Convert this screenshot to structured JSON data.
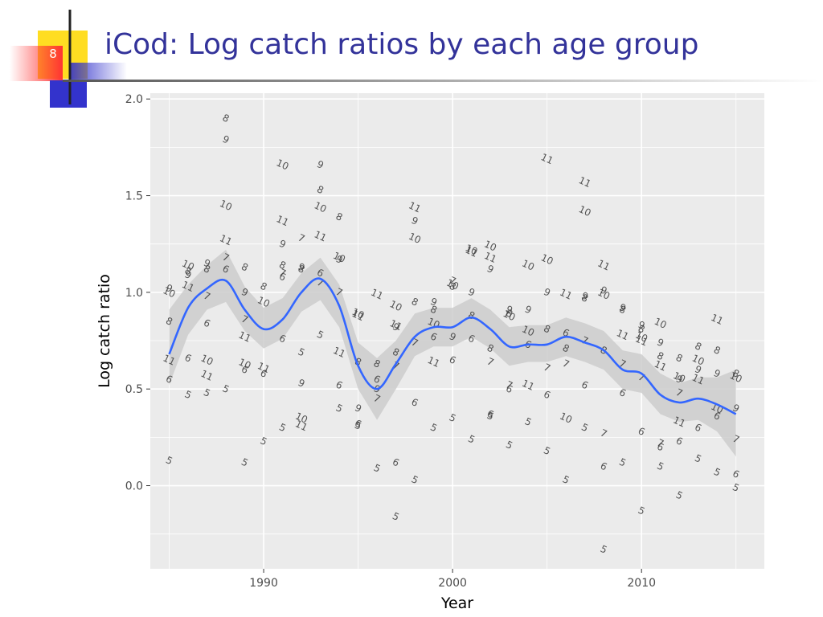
{
  "slide": {
    "number": "8",
    "title": "iCod: Log catch ratios by each age group",
    "accent_colors": {
      "title": "#33339a",
      "yellow": "#ffdd22",
      "blue": "#3333cc",
      "red": "#ff3333"
    }
  },
  "chart_data": {
    "type": "scatter",
    "title": "",
    "xlabel": "Year",
    "ylabel": "Log catch ratio",
    "xlim": [
      1984,
      2016.5
    ],
    "ylim": [
      -0.43,
      2.03
    ],
    "x_ticks": [
      1990,
      2000,
      2010
    ],
    "x_tick_labels": [
      "1990",
      "2000",
      "2010"
    ],
    "y_ticks": [
      0.0,
      0.5,
      1.0,
      1.5,
      2.0
    ],
    "y_tick_labels": [
      "0.0",
      "0.5",
      "1.0",
      "1.5",
      "2.0"
    ],
    "grid": true,
    "legend": "none",
    "point_marker": "age group number drawn as text label",
    "colors": {
      "panel": "#ebebeb",
      "grid": "#ffffff",
      "smooth_line": "#3366ff",
      "ribbon": "#cccccc",
      "text": "#4d4d4d"
    },
    "points": [
      {
        "x": 1985,
        "y": 0.65,
        "label": "11"
      },
      {
        "x": 1985,
        "y": 0.55,
        "label": "6"
      },
      {
        "x": 1985,
        "y": 0.13,
        "label": "5"
      },
      {
        "x": 1985,
        "y": 0.85,
        "label": "8"
      },
      {
        "x": 1985,
        "y": 1.0,
        "label": "10"
      },
      {
        "x": 1985,
        "y": 1.02,
        "label": "9"
      },
      {
        "x": 1986,
        "y": 0.66,
        "label": "6"
      },
      {
        "x": 1986,
        "y": 0.47,
        "label": "5"
      },
      {
        "x": 1986,
        "y": 1.03,
        "label": "11"
      },
      {
        "x": 1986,
        "y": 1.14,
        "label": "10"
      },
      {
        "x": 1986,
        "y": 1.09,
        "label": "9"
      },
      {
        "x": 1986,
        "y": 1.11,
        "label": "8"
      },
      {
        "x": 1987,
        "y": 0.57,
        "label": "11"
      },
      {
        "x": 1987,
        "y": 0.48,
        "label": "5"
      },
      {
        "x": 1987,
        "y": 0.65,
        "label": "10"
      },
      {
        "x": 1987,
        "y": 0.84,
        "label": "6"
      },
      {
        "x": 1987,
        "y": 1.15,
        "label": "9"
      },
      {
        "x": 1987,
        "y": 0.98,
        "label": "7"
      },
      {
        "x": 1987,
        "y": 1.12,
        "label": "8"
      },
      {
        "x": 1988,
        "y": 1.9,
        "label": "8"
      },
      {
        "x": 1988,
        "y": 1.79,
        "label": "9"
      },
      {
        "x": 1988,
        "y": 1.45,
        "label": "10"
      },
      {
        "x": 1988,
        "y": 1.27,
        "label": "11"
      },
      {
        "x": 1988,
        "y": 1.18,
        "label": "7"
      },
      {
        "x": 1988,
        "y": 1.12,
        "label": "6"
      },
      {
        "x": 1988,
        "y": 0.5,
        "label": "5"
      },
      {
        "x": 1989,
        "y": 1.13,
        "label": "8"
      },
      {
        "x": 1989,
        "y": 1.0,
        "label": "9"
      },
      {
        "x": 1989,
        "y": 0.86,
        "label": "7"
      },
      {
        "x": 1989,
        "y": 0.77,
        "label": "11"
      },
      {
        "x": 1989,
        "y": 0.63,
        "label": "10"
      },
      {
        "x": 1989,
        "y": 0.6,
        "label": "6"
      },
      {
        "x": 1989,
        "y": 0.12,
        "label": "5"
      },
      {
        "x": 1990,
        "y": 1.03,
        "label": "8"
      },
      {
        "x": 1990,
        "y": 0.95,
        "label": "10"
      },
      {
        "x": 1990,
        "y": 0.61,
        "label": "11"
      },
      {
        "x": 1990,
        "y": 0.58,
        "label": "6"
      },
      {
        "x": 1990,
        "y": 0.23,
        "label": "5"
      },
      {
        "x": 1991,
        "y": 1.66,
        "label": "10"
      },
      {
        "x": 1991,
        "y": 1.37,
        "label": "11"
      },
      {
        "x": 1991,
        "y": 1.25,
        "label": "9"
      },
      {
        "x": 1991,
        "y": 1.14,
        "label": "8"
      },
      {
        "x": 1991,
        "y": 1.1,
        "label": "7"
      },
      {
        "x": 1991,
        "y": 1.08,
        "label": "6"
      },
      {
        "x": 1991,
        "y": 0.76,
        "label": "6"
      },
      {
        "x": 1991,
        "y": 0.3,
        "label": "5"
      },
      {
        "x": 1992,
        "y": 1.28,
        "label": "7"
      },
      {
        "x": 1992,
        "y": 1.13,
        "label": "9"
      },
      {
        "x": 1992,
        "y": 1.12,
        "label": "8"
      },
      {
        "x": 1992,
        "y": 0.69,
        "label": "5"
      },
      {
        "x": 1992,
        "y": 0.53,
        "label": "9"
      },
      {
        "x": 1992,
        "y": 0.35,
        "label": "10"
      },
      {
        "x": 1992,
        "y": 0.31,
        "label": "11"
      },
      {
        "x": 1993,
        "y": 1.66,
        "label": "9"
      },
      {
        "x": 1993,
        "y": 1.53,
        "label": "8"
      },
      {
        "x": 1993,
        "y": 1.44,
        "label": "10"
      },
      {
        "x": 1993,
        "y": 1.29,
        "label": "11"
      },
      {
        "x": 1993,
        "y": 1.1,
        "label": "6"
      },
      {
        "x": 1993,
        "y": 1.05,
        "label": "7"
      },
      {
        "x": 1993,
        "y": 0.78,
        "label": "5"
      },
      {
        "x": 1994,
        "y": 1.39,
        "label": "8"
      },
      {
        "x": 1994,
        "y": 1.18,
        "label": "10"
      },
      {
        "x": 1994,
        "y": 1.17,
        "label": "9"
      },
      {
        "x": 1994,
        "y": 1.0,
        "label": "7"
      },
      {
        "x": 1994,
        "y": 0.69,
        "label": "11"
      },
      {
        "x": 1994,
        "y": 0.52,
        "label": "6"
      },
      {
        "x": 1994,
        "y": 0.4,
        "label": "5"
      },
      {
        "x": 1995,
        "y": 0.89,
        "label": "10"
      },
      {
        "x": 1995,
        "y": 0.88,
        "label": "11"
      },
      {
        "x": 1995,
        "y": 0.64,
        "label": "8"
      },
      {
        "x": 1995,
        "y": 0.4,
        "label": "9"
      },
      {
        "x": 1995,
        "y": 0.32,
        "label": "6"
      },
      {
        "x": 1995,
        "y": 0.31,
        "label": "5"
      },
      {
        "x": 1996,
        "y": 0.99,
        "label": "11"
      },
      {
        "x": 1996,
        "y": 0.63,
        "label": "8"
      },
      {
        "x": 1996,
        "y": 0.55,
        "label": "6"
      },
      {
        "x": 1996,
        "y": 0.5,
        "label": "9"
      },
      {
        "x": 1996,
        "y": 0.45,
        "label": "7"
      },
      {
        "x": 1996,
        "y": 0.09,
        "label": "5"
      },
      {
        "x": 1997,
        "y": 0.93,
        "label": "10"
      },
      {
        "x": 1997,
        "y": 0.83,
        "label": "11"
      },
      {
        "x": 1997,
        "y": 0.82,
        "label": "9"
      },
      {
        "x": 1997,
        "y": 0.69,
        "label": "8"
      },
      {
        "x": 1997,
        "y": 0.62,
        "label": "7"
      },
      {
        "x": 1997,
        "y": 0.12,
        "label": "6"
      },
      {
        "x": 1997,
        "y": -0.16,
        "label": "5"
      },
      {
        "x": 1998,
        "y": 1.44,
        "label": "11"
      },
      {
        "x": 1998,
        "y": 1.37,
        "label": "9"
      },
      {
        "x": 1998,
        "y": 1.28,
        "label": "10"
      },
      {
        "x": 1998,
        "y": 0.95,
        "label": "8"
      },
      {
        "x": 1998,
        "y": 0.74,
        "label": "7"
      },
      {
        "x": 1998,
        "y": 0.43,
        "label": "6"
      },
      {
        "x": 1998,
        "y": 0.03,
        "label": "5"
      },
      {
        "x": 1999,
        "y": 0.95,
        "label": "9"
      },
      {
        "x": 1999,
        "y": 0.91,
        "label": "8"
      },
      {
        "x": 1999,
        "y": 0.84,
        "label": "10"
      },
      {
        "x": 1999,
        "y": 0.77,
        "label": "6"
      },
      {
        "x": 1999,
        "y": 0.64,
        "label": "11"
      },
      {
        "x": 1999,
        "y": 0.3,
        "label": "5"
      },
      {
        "x": 2000,
        "y": 1.06,
        "label": "7"
      },
      {
        "x": 2000,
        "y": 1.03,
        "label": "8"
      },
      {
        "x": 2000,
        "y": 1.04,
        "label": "10"
      },
      {
        "x": 2000,
        "y": 0.77,
        "label": "9"
      },
      {
        "x": 2000,
        "y": 0.65,
        "label": "6"
      },
      {
        "x": 2000,
        "y": 0.35,
        "label": "5"
      },
      {
        "x": 2001,
        "y": 1.22,
        "label": "10"
      },
      {
        "x": 2001,
        "y": 1.21,
        "label": "11"
      },
      {
        "x": 2001,
        "y": 1.0,
        "label": "9"
      },
      {
        "x": 2001,
        "y": 0.88,
        "label": "8"
      },
      {
        "x": 2001,
        "y": 0.76,
        "label": "6"
      },
      {
        "x": 2001,
        "y": 0.24,
        "label": "5"
      },
      {
        "x": 2002,
        "y": 1.24,
        "label": "10"
      },
      {
        "x": 2002,
        "y": 1.18,
        "label": "11"
      },
      {
        "x": 2002,
        "y": 1.12,
        "label": "9"
      },
      {
        "x": 2002,
        "y": 0.71,
        "label": "8"
      },
      {
        "x": 2002,
        "y": 0.64,
        "label": "7"
      },
      {
        "x": 2002,
        "y": 0.37,
        "label": "6"
      },
      {
        "x": 2002,
        "y": 0.36,
        "label": "5"
      },
      {
        "x": 2003,
        "y": 0.91,
        "label": "9"
      },
      {
        "x": 2003,
        "y": 0.89,
        "label": "8"
      },
      {
        "x": 2003,
        "y": 0.88,
        "label": "10"
      },
      {
        "x": 2003,
        "y": 0.52,
        "label": "7"
      },
      {
        "x": 2003,
        "y": 0.5,
        "label": "6"
      },
      {
        "x": 2003,
        "y": 0.21,
        "label": "5"
      },
      {
        "x": 2004,
        "y": 1.14,
        "label": "10"
      },
      {
        "x": 2004,
        "y": 0.91,
        "label": "9"
      },
      {
        "x": 2004,
        "y": 0.8,
        "label": "10"
      },
      {
        "x": 2004,
        "y": 0.73,
        "label": "6"
      },
      {
        "x": 2004,
        "y": 0.52,
        "label": "11"
      },
      {
        "x": 2004,
        "y": 0.33,
        "label": "5"
      },
      {
        "x": 2005,
        "y": 1.69,
        "label": "11"
      },
      {
        "x": 2005,
        "y": 1.17,
        "label": "10"
      },
      {
        "x": 2005,
        "y": 1.0,
        "label": "9"
      },
      {
        "x": 2005,
        "y": 0.81,
        "label": "8"
      },
      {
        "x": 2005,
        "y": 0.61,
        "label": "7"
      },
      {
        "x": 2005,
        "y": 0.47,
        "label": "6"
      },
      {
        "x": 2005,
        "y": 0.18,
        "label": "5"
      },
      {
        "x": 2006,
        "y": 0.99,
        "label": "11"
      },
      {
        "x": 2006,
        "y": 0.79,
        "label": "6"
      },
      {
        "x": 2006,
        "y": 0.71,
        "label": "8"
      },
      {
        "x": 2006,
        "y": 0.63,
        "label": "7"
      },
      {
        "x": 2006,
        "y": 0.35,
        "label": "10"
      },
      {
        "x": 2006,
        "y": 0.03,
        "label": "5"
      },
      {
        "x": 2007,
        "y": 1.57,
        "label": "11"
      },
      {
        "x": 2007,
        "y": 1.42,
        "label": "10"
      },
      {
        "x": 2007,
        "y": 0.98,
        "label": "9"
      },
      {
        "x": 2007,
        "y": 0.97,
        "label": "8"
      },
      {
        "x": 2007,
        "y": 0.75,
        "label": "7"
      },
      {
        "x": 2007,
        "y": 0.52,
        "label": "6"
      },
      {
        "x": 2007,
        "y": 0.3,
        "label": "5"
      },
      {
        "x": 2008,
        "y": 1.14,
        "label": "11"
      },
      {
        "x": 2008,
        "y": 1.01,
        "label": "9"
      },
      {
        "x": 2008,
        "y": 0.99,
        "label": "10"
      },
      {
        "x": 2008,
        "y": 0.7,
        "label": "8"
      },
      {
        "x": 2008,
        "y": 0.27,
        "label": "7"
      },
      {
        "x": 2008,
        "y": 0.1,
        "label": "6"
      },
      {
        "x": 2008,
        "y": -0.33,
        "label": "5"
      },
      {
        "x": 2009,
        "y": 0.92,
        "label": "9"
      },
      {
        "x": 2009,
        "y": 0.91,
        "label": "8"
      },
      {
        "x": 2009,
        "y": 0.78,
        "label": "11"
      },
      {
        "x": 2009,
        "y": 0.63,
        "label": "7"
      },
      {
        "x": 2009,
        "y": 0.48,
        "label": "6"
      },
      {
        "x": 2009,
        "y": 0.12,
        "label": "5"
      },
      {
        "x": 2010,
        "y": 0.83,
        "label": "9"
      },
      {
        "x": 2010,
        "y": 0.81,
        "label": "8"
      },
      {
        "x": 2010,
        "y": 0.77,
        "label": "10"
      },
      {
        "x": 2010,
        "y": 0.75,
        "label": "11"
      },
      {
        "x": 2010,
        "y": 0.56,
        "label": "7"
      },
      {
        "x": 2010,
        "y": 0.28,
        "label": "6"
      },
      {
        "x": 2010,
        "y": -0.13,
        "label": "5"
      },
      {
        "x": 2011,
        "y": 0.84,
        "label": "10"
      },
      {
        "x": 2011,
        "y": 0.74,
        "label": "9"
      },
      {
        "x": 2011,
        "y": 0.67,
        "label": "8"
      },
      {
        "x": 2011,
        "y": 0.62,
        "label": "11"
      },
      {
        "x": 2011,
        "y": 0.22,
        "label": "7"
      },
      {
        "x": 2011,
        "y": 0.2,
        "label": "6"
      },
      {
        "x": 2011,
        "y": 0.1,
        "label": "5"
      },
      {
        "x": 2012,
        "y": 0.66,
        "label": "8"
      },
      {
        "x": 2012,
        "y": 0.56,
        "label": "10"
      },
      {
        "x": 2012,
        "y": 0.55,
        "label": "9"
      },
      {
        "x": 2012,
        "y": 0.48,
        "label": "7"
      },
      {
        "x": 2012,
        "y": 0.33,
        "label": "11"
      },
      {
        "x": 2012,
        "y": 0.23,
        "label": "6"
      },
      {
        "x": 2012,
        "y": -0.05,
        "label": "5"
      },
      {
        "x": 2013,
        "y": 0.72,
        "label": "8"
      },
      {
        "x": 2013,
        "y": 0.65,
        "label": "10"
      },
      {
        "x": 2013,
        "y": 0.6,
        "label": "9"
      },
      {
        "x": 2013,
        "y": 0.55,
        "label": "11"
      },
      {
        "x": 2013,
        "y": 0.3,
        "label": "6"
      },
      {
        "x": 2013,
        "y": 0.14,
        "label": "5"
      },
      {
        "x": 2014,
        "y": 0.86,
        "label": "11"
      },
      {
        "x": 2014,
        "y": 0.7,
        "label": "8"
      },
      {
        "x": 2014,
        "y": 0.58,
        "label": "9"
      },
      {
        "x": 2014,
        "y": 0.4,
        "label": "10"
      },
      {
        "x": 2014,
        "y": 0.36,
        "label": "6"
      },
      {
        "x": 2014,
        "y": 0.07,
        "label": "5"
      },
      {
        "x": 2015,
        "y": 0.58,
        "label": "8"
      },
      {
        "x": 2015,
        "y": 0.56,
        "label": "10"
      },
      {
        "x": 2015,
        "y": 0.4,
        "label": "9"
      },
      {
        "x": 2015,
        "y": 0.24,
        "label": "7"
      },
      {
        "x": 2015,
        "y": 0.06,
        "label": "6"
      },
      {
        "x": 2015,
        "y": -0.01,
        "label": "5"
      }
    ],
    "smooth": {
      "x": [
        1985,
        1986,
        1987,
        1988,
        1989,
        1990,
        1991,
        1992,
        1993,
        1994,
        1995,
        1996,
        1997,
        1998,
        1999,
        2000,
        2001,
        2002,
        2003,
        2004,
        2005,
        2006,
        2007,
        2008,
        2009,
        2010,
        2011,
        2012,
        2013,
        2014,
        2015
      ],
      "y": [
        0.68,
        0.92,
        1.02,
        1.06,
        0.91,
        0.81,
        0.86,
        1.0,
        1.07,
        0.93,
        0.62,
        0.5,
        0.63,
        0.77,
        0.82,
        0.82,
        0.87,
        0.81,
        0.72,
        0.73,
        0.73,
        0.77,
        0.74,
        0.7,
        0.6,
        0.58,
        0.47,
        0.43,
        0.45,
        0.42,
        0.37
      ],
      "lower": [
        0.52,
        0.78,
        0.91,
        0.95,
        0.8,
        0.71,
        0.76,
        0.9,
        0.96,
        0.82,
        0.5,
        0.34,
        0.5,
        0.67,
        0.72,
        0.72,
        0.77,
        0.71,
        0.62,
        0.64,
        0.64,
        0.67,
        0.64,
        0.6,
        0.5,
        0.48,
        0.37,
        0.33,
        0.34,
        0.28,
        0.15
      ],
      "upper": [
        0.91,
        1.04,
        1.14,
        1.22,
        1.03,
        0.92,
        0.97,
        1.1,
        1.18,
        1.04,
        0.74,
        0.66,
        0.75,
        0.89,
        0.92,
        0.92,
        0.97,
        0.91,
        0.82,
        0.83,
        0.83,
        0.87,
        0.84,
        0.8,
        0.7,
        0.68,
        0.58,
        0.53,
        0.56,
        0.56,
        0.6
      ]
    }
  }
}
